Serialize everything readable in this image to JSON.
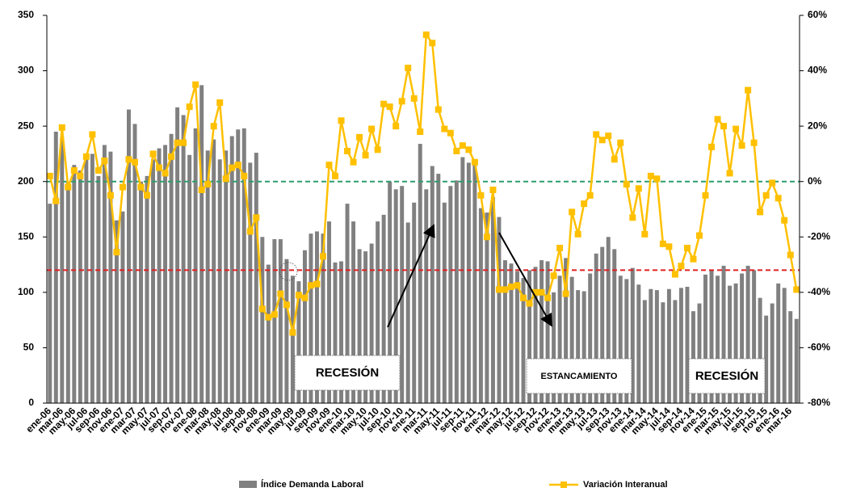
{
  "chart_data": {
    "type": "bar-line",
    "categories": [
      "ene-06",
      null,
      "mar-06",
      null,
      "may-06",
      null,
      "jul-06",
      null,
      "sep-06",
      null,
      "nov-06",
      null,
      "ene-07",
      null,
      "mar-07",
      null,
      "may-07",
      null,
      "jul-07",
      null,
      "sep-07",
      null,
      "nov-07",
      null,
      "ene-08",
      null,
      "mar-08",
      null,
      "may-08",
      null,
      "jul-08",
      null,
      "sep-08",
      null,
      "nov-08",
      null,
      "ene-09",
      null,
      "mar-09",
      null,
      "may-09",
      null,
      "jul-09",
      null,
      "sep-09",
      null,
      "nov-09",
      null,
      "ene-10",
      null,
      "mar-10",
      null,
      "may-10",
      null,
      "jul-10",
      null,
      "sep-10",
      null,
      "nov-10",
      null,
      "ene-11",
      null,
      "mar-11",
      null,
      "may-11",
      null,
      "jul-11",
      null,
      "sep-11",
      null,
      "nov-11",
      null,
      "ene-12",
      null,
      "mar-12",
      null,
      "may-12",
      null,
      "jul-12",
      null,
      "sep-12",
      null,
      "nov-12",
      null,
      "ene-13",
      null,
      "mar-13",
      null,
      "may-13",
      null,
      "jul-13",
      null,
      "sep-13",
      null,
      "nov-13",
      null,
      "ene-14",
      null,
      "mar-14",
      null,
      "may-14",
      null,
      "jul-14",
      null,
      "sep-14",
      null,
      "nov-14",
      null,
      "ene-15",
      null,
      "mar-15",
      null,
      "may-15",
      null,
      "jul-15",
      null,
      "sep-15",
      null,
      "nov-15",
      null,
      "ene-16",
      null,
      "mar-16",
      null
    ],
    "series": [
      {
        "name": "Índice Demanda Laboral",
        "type": "bar",
        "color": "#808080",
        "values": [
          180,
          245,
          240,
          200,
          215,
          210,
          220,
          225,
          205,
          233,
          227,
          165,
          173,
          265,
          252,
          200,
          205,
          220,
          230,
          233,
          243,
          267,
          260,
          224,
          248,
          287,
          228,
          238,
          220,
          228,
          241,
          247,
          248,
          217,
          226,
          150,
          125,
          148,
          148,
          130,
          115,
          110,
          138,
          153,
          155,
          153,
          164,
          127,
          128,
          180,
          164,
          139,
          137,
          144,
          164,
          170,
          200,
          193,
          196,
          163,
          181,
          234,
          193,
          214,
          207,
          181,
          196,
          201,
          222,
          217,
          218,
          176,
          172,
          186,
          168,
          129,
          126,
          119,
          113,
          120,
          123,
          129,
          128,
          100,
          115,
          131,
          114,
          102,
          101,
          117,
          135,
          141,
          150,
          139,
          115,
          112,
          122,
          107,
          93,
          103,
          102,
          91,
          103,
          93,
          104,
          105,
          83,
          90,
          116,
          120,
          115,
          124,
          106,
          108,
          117,
          124,
          120,
          95,
          79,
          90,
          108,
          104,
          83,
          76
        ]
      },
      {
        "name": "Variación Interanual",
        "type": "line",
        "axis": "y2",
        "color": "#ffc000",
        "values": [
          2,
          -7,
          19.5,
          -2,
          4,
          2,
          9,
          17,
          4,
          7.5,
          -5,
          -25.5,
          -2,
          8,
          7,
          -2,
          -5,
          10,
          5,
          3,
          9,
          14,
          14,
          27,
          35,
          -3,
          -1,
          20,
          28.5,
          1,
          5,
          6,
          2,
          -18,
          -13,
          -46,
          -49,
          -48,
          -40.5,
          -44.5,
          -54.5,
          -41,
          -42,
          -37.5,
          -37,
          -27,
          6,
          2,
          22,
          11,
          7,
          16,
          9.5,
          19,
          11.5,
          28,
          27,
          20,
          29,
          41,
          30,
          18,
          53,
          50,
          26,
          19,
          17.5,
          11,
          13,
          11.5,
          7,
          -5,
          -20,
          -3,
          -39,
          -39,
          -38,
          -37.5,
          -42,
          -44,
          -40,
          -40,
          -42,
          -34,
          -24,
          -40.5,
          -11,
          -19,
          -8,
          -5,
          17,
          15,
          16.5,
          8,
          14,
          -1,
          -13,
          -2.5,
          -19,
          2,
          1,
          -22.5,
          -23.5,
          -33.5,
          -30.5,
          -24,
          -28,
          -19.5,
          -5,
          12.5,
          22.5,
          20,
          3,
          19,
          13,
          33,
          14,
          -11,
          -5,
          -0.5,
          -6,
          -14,
          -26.5,
          -39
        ]
      }
    ],
    "ylim": [
      0,
      350
    ],
    "yticks": [
      0,
      50,
      100,
      150,
      200,
      250,
      300,
      350
    ],
    "y2lim": [
      -80,
      60
    ],
    "y2ticks": [
      {
        "value": -80,
        "label": "-80%"
      },
      {
        "value": -60,
        "label": "-60%"
      },
      {
        "value": -40,
        "label": "-40%"
      },
      {
        "value": -20,
        "label": "-20%"
      },
      {
        "value": 0,
        "label": "0%"
      },
      {
        "value": 20,
        "label": "20%"
      },
      {
        "value": 40,
        "label": "40%"
      },
      {
        "value": 60,
        "label": "60%"
      }
    ],
    "reference_lines": [
      {
        "value": 0,
        "axis": "y2",
        "color": "#2e9e6b"
      },
      {
        "value": 120,
        "axis": "y",
        "color": "#e02020"
      }
    ],
    "annotations": [
      "RECESIÓN",
      "ESTANCAMIENTO",
      "RECESIÓN"
    ],
    "legend": "bottom"
  }
}
